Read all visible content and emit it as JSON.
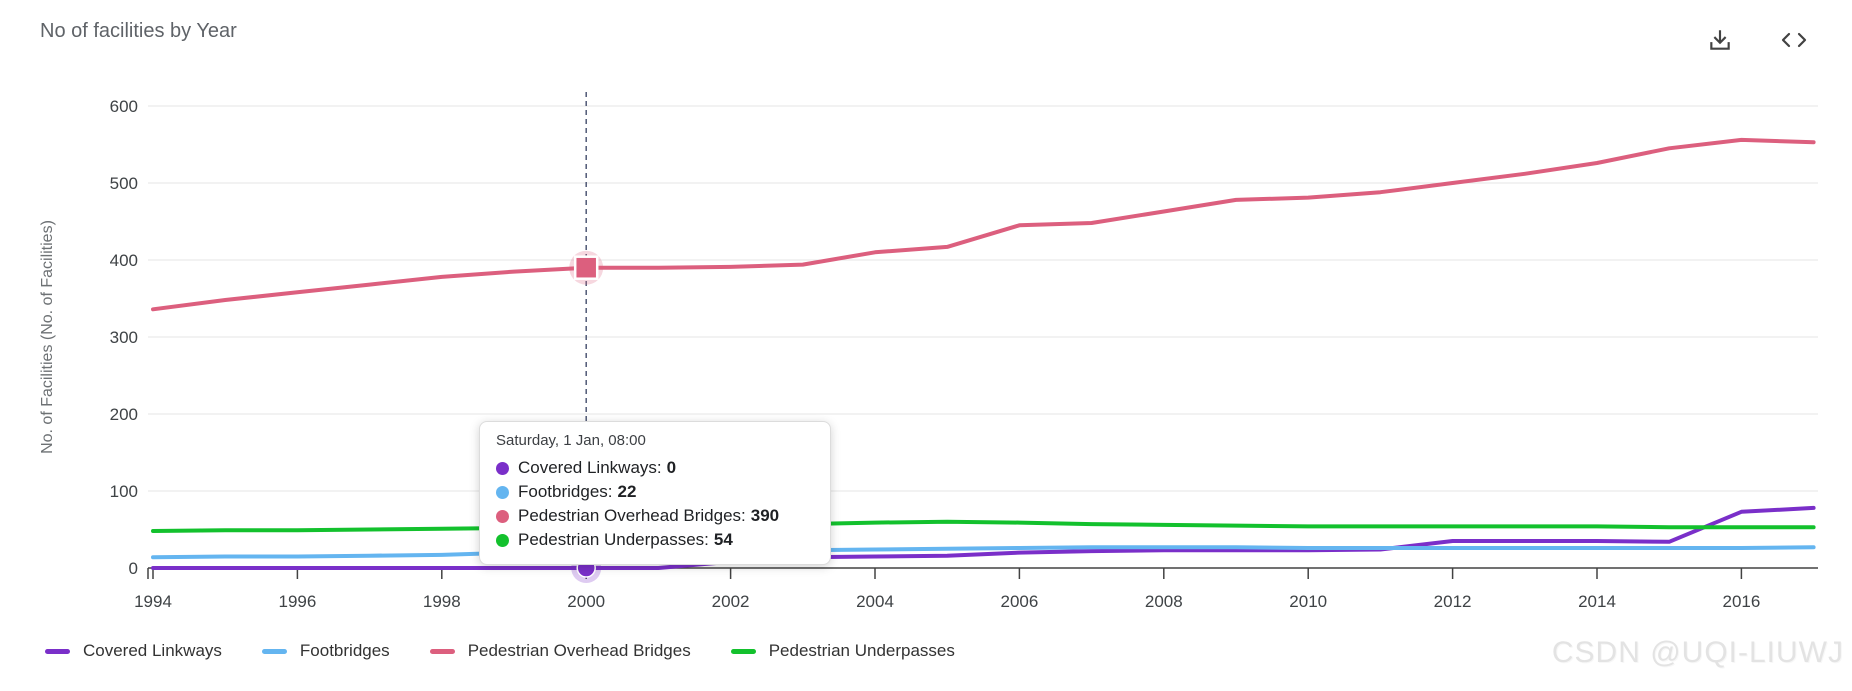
{
  "header": {
    "title": "No of facilities by Year",
    "download_icon": "download-icon",
    "code_icon": "code-icon"
  },
  "chart_data": {
    "type": "line",
    "title": "No of facilities by Year",
    "xlabel": "",
    "ylabel": "No. of Facilities (No. of Facilities)",
    "xlim": [
      1994,
      2017
    ],
    "ylim": [
      0,
      600
    ],
    "grid": true,
    "legend_position": "bottom",
    "x": [
      1994,
      1995,
      1996,
      1997,
      1998,
      1999,
      2000,
      2001,
      2002,
      2003,
      2004,
      2005,
      2006,
      2007,
      2008,
      2009,
      2010,
      2011,
      2012,
      2013,
      2014,
      2015,
      2016,
      2017
    ],
    "x_tick_labels": [
      "1994",
      "1996",
      "1998",
      "2000",
      "2002",
      "2004",
      "2006",
      "2008",
      "2010",
      "2012",
      "2014",
      "2016"
    ],
    "y_ticks": [
      0,
      100,
      200,
      300,
      400,
      500,
      600
    ],
    "series": [
      {
        "name": "Covered Linkways",
        "color": "#7A2FC9",
        "values": [
          0,
          0,
          0,
          0,
          0,
          0,
          0,
          0,
          8,
          14,
          15,
          16,
          20,
          22,
          23,
          23,
          23,
          24,
          35,
          35,
          35,
          34,
          73,
          78
        ]
      },
      {
        "name": "Footbridges",
        "color": "#64B5F0",
        "values": [
          14,
          15,
          15,
          16,
          17,
          20,
          22,
          23,
          23,
          23,
          24,
          25,
          26,
          27,
          27,
          27,
          26,
          26,
          26,
          26,
          26,
          26,
          26,
          27
        ]
      },
      {
        "name": "Pedestrian Overhead Bridges",
        "color": "#DC5F7E",
        "values": [
          336,
          348,
          358,
          368,
          378,
          385,
          390,
          390,
          391,
          394,
          410,
          417,
          445,
          448,
          463,
          478,
          481,
          488,
          500,
          512,
          526,
          545,
          556,
          553
        ]
      },
      {
        "name": "Pedestrian Underpasses",
        "color": "#13C12D",
        "values": [
          48,
          49,
          49,
          50,
          51,
          52,
          54,
          55,
          56,
          57,
          59,
          60,
          59,
          57,
          56,
          55,
          54,
          54,
          54,
          54,
          54,
          53,
          53,
          53
        ]
      }
    ],
    "highlight": {
      "x": 2000,
      "crosshair": true,
      "crosshair_color": "#4F5875",
      "markers": [
        {
          "series": 0,
          "shape": "circle"
        },
        {
          "series": 2,
          "shape": "square"
        }
      ]
    }
  },
  "tooltip": {
    "header": "Saturday, 1 Jan, 08:00",
    "rows": [
      {
        "label": "Covered Linkways:",
        "value": "0",
        "color": "#7A2FC9"
      },
      {
        "label": "Footbridges:",
        "value": "22",
        "color": "#64B5F0"
      },
      {
        "label": "Pedestrian Overhead Bridges:",
        "value": "390",
        "color": "#DC5F7E"
      },
      {
        "label": "Pedestrian Underpasses:",
        "value": "54",
        "color": "#13C12D"
      }
    ]
  },
  "legend": {
    "items": [
      {
        "label": "Covered Linkways",
        "color": "#7A2FC9"
      },
      {
        "label": "Footbridges",
        "color": "#64B5F0"
      },
      {
        "label": "Pedestrian Overhead Bridges",
        "color": "#DC5F7E"
      },
      {
        "label": "Pedestrian Underpasses",
        "color": "#13C12D"
      }
    ]
  },
  "watermark": "CSDN @UQI-LIUWJ"
}
